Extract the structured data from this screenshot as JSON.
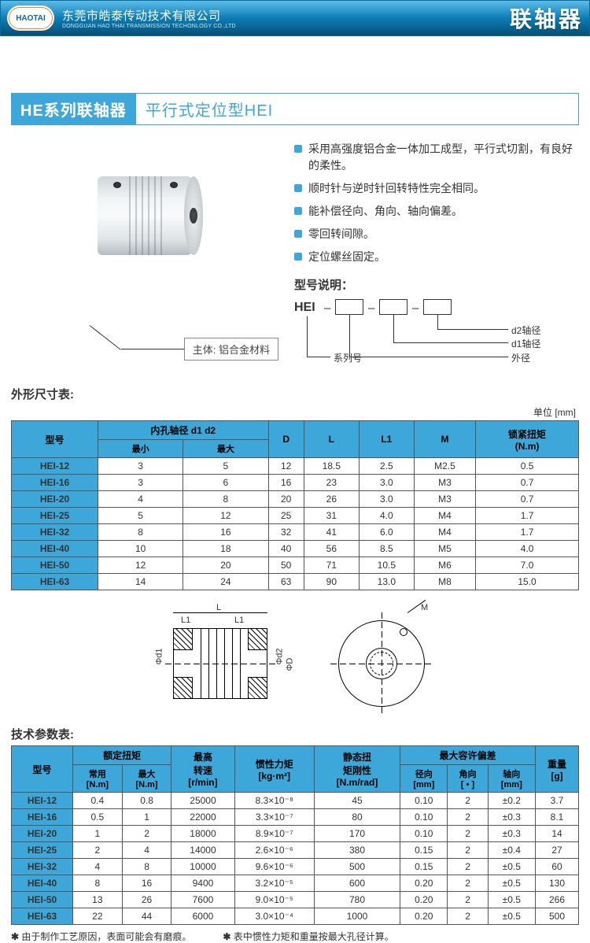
{
  "header": {
    "logo_text": "HAOTAI",
    "company_cn": "东莞市皓泰传动技术有限公司",
    "company_en": "DONGGUAN HAO THAI TRANSMISSION TECHONLOGY CO.,LTD",
    "category": "联轴器"
  },
  "title": {
    "main": "HE系列联轴器",
    "sub": "平行式定位型HEI"
  },
  "product": {
    "callout": "主体: 铝合金材料"
  },
  "features": {
    "items": [
      "采用高强度铝合金一体加工成型，平行式切割，有良好的柔性。",
      "顺时针与逆时针回转特性完全相同。",
      "能补偿径向、角向、轴向偏差。",
      "零回转间隙。",
      "定位螺丝固定。"
    ]
  },
  "model_desc": {
    "title": "型号说明：",
    "prefix": "HEI",
    "labels": {
      "d2": "d2轴径",
      "d1": "d1轴径",
      "outer": "外径",
      "series": "系列号"
    }
  },
  "dim_table": {
    "title": "外形尺寸表:",
    "unit": "单位 [mm]",
    "headers": {
      "model": "型号",
      "bore": "内孔轴径 d1 d2",
      "min": "最小",
      "max": "最大",
      "d": "D",
      "l": "L",
      "l1": "L1",
      "m": "M",
      "torque": "锁紧扭矩\n(N.m)"
    },
    "rows": [
      {
        "model": "HEI-12",
        "min": "3",
        "max": "5",
        "d": "12",
        "l": "18.5",
        "l1": "2.5",
        "m": "M2.5",
        "t": "0.5"
      },
      {
        "model": "HEI-16",
        "min": "3",
        "max": "6",
        "d": "16",
        "l": "23",
        "l1": "3.0",
        "m": "M3",
        "t": "0.7"
      },
      {
        "model": "HEI-20",
        "min": "4",
        "max": "8",
        "d": "20",
        "l": "26",
        "l1": "3.0",
        "m": "M3",
        "t": "0.7"
      },
      {
        "model": "HEI-25",
        "min": "5",
        "max": "12",
        "d": "25",
        "l": "31",
        "l1": "4.0",
        "m": "M4",
        "t": "1.7"
      },
      {
        "model": "HEI-32",
        "min": "8",
        "max": "16",
        "d": "32",
        "l": "41",
        "l1": "6.0",
        "m": "M4",
        "t": "1.7"
      },
      {
        "model": "HEI-40",
        "min": "10",
        "max": "18",
        "d": "40",
        "l": "56",
        "l1": "8.5",
        "m": "M5",
        "t": "4.0"
      },
      {
        "model": "HEI-50",
        "min": "12",
        "max": "20",
        "d": "50",
        "l": "71",
        "l1": "10.5",
        "m": "M6",
        "t": "7.0"
      },
      {
        "model": "HEI-63",
        "min": "14",
        "max": "24",
        "d": "63",
        "l": "90",
        "l1": "13.0",
        "m": "M8",
        "t": "15.0"
      }
    ]
  },
  "tech_table": {
    "title": "技术参数表:",
    "headers": {
      "model": "型号",
      "rated_torque": "额定扭矩",
      "normal": "常用\n[N.m]",
      "max": "最大\n[N.m]",
      "max_speed": "最高\n转速\n[r/min]",
      "inertia": "惯性力矩\n[kg·m²]",
      "static": "静态扭\n矩刚性\n[N.m/rad]",
      "max_dev": "最大容许偏差",
      "radial": "径向\n[mm]",
      "angular": "角向\n[ • ]",
      "axial": "轴向\n[mm]",
      "weight": "重量\n[g]"
    },
    "rows": [
      {
        "model": "HEI-12",
        "n": "0.4",
        "mx": "0.8",
        "sp": "25000",
        "in": "8.3×10⁻⁸",
        "st": "45",
        "r": "0.10",
        "a": "2",
        "ax": "±0.2",
        "w": "3.7"
      },
      {
        "model": "HEI-16",
        "n": "0.5",
        "mx": "1",
        "sp": "22000",
        "in": "3.3×10⁻⁷",
        "st": "80",
        "r": "0.10",
        "a": "2",
        "ax": "±0.3",
        "w": "8.1"
      },
      {
        "model": "HEI-20",
        "n": "1",
        "mx": "2",
        "sp": "18000",
        "in": "8.9×10⁻⁷",
        "st": "170",
        "r": "0.10",
        "a": "2",
        "ax": "±0.3",
        "w": "14"
      },
      {
        "model": "HEI-25",
        "n": "2",
        "mx": "4",
        "sp": "14000",
        "in": "2.6×10⁻⁶",
        "st": "380",
        "r": "0.15",
        "a": "2",
        "ax": "±0.4",
        "w": "27"
      },
      {
        "model": "HEI-32",
        "n": "4",
        "mx": "8",
        "sp": "10000",
        "in": "9.6×10⁻⁶",
        "st": "500",
        "r": "0.15",
        "a": "2",
        "ax": "±0.5",
        "w": "60"
      },
      {
        "model": "HEI-40",
        "n": "8",
        "mx": "16",
        "sp": "9400",
        "in": "3.2×10⁻⁵",
        "st": "600",
        "r": "0.20",
        "a": "2",
        "ax": "±0.5",
        "w": "130"
      },
      {
        "model": "HEI-50",
        "n": "13",
        "mx": "26",
        "sp": "7600",
        "in": "9.0×10⁻⁵",
        "st": "780",
        "r": "0.20",
        "a": "2",
        "ax": "±0.5",
        "w": "266"
      },
      {
        "model": "HEI-63",
        "n": "22",
        "mx": "44",
        "sp": "6000",
        "in": "3.0×10⁻⁴",
        "st": "1000",
        "r": "0.20",
        "a": "2",
        "ax": "±0.5",
        "w": "500"
      }
    ]
  },
  "footnote": {
    "a": "由于制作工艺原因，表面可能会有磨痕。",
    "b": "表中惯性力矩和重量按最大孔径计算。"
  },
  "drawing": {
    "l": "L",
    "l1": "L1",
    "m": "M",
    "phi_d1": "Φd1",
    "phi_d2": "Φd2",
    "phi_d": "ΦD"
  },
  "colors": {
    "accent": "#3ea7d9",
    "header_grad_top": "#5cbce8",
    "header_grad_mid": "#0d7db5",
    "header_grad_bot": "#064f73"
  }
}
